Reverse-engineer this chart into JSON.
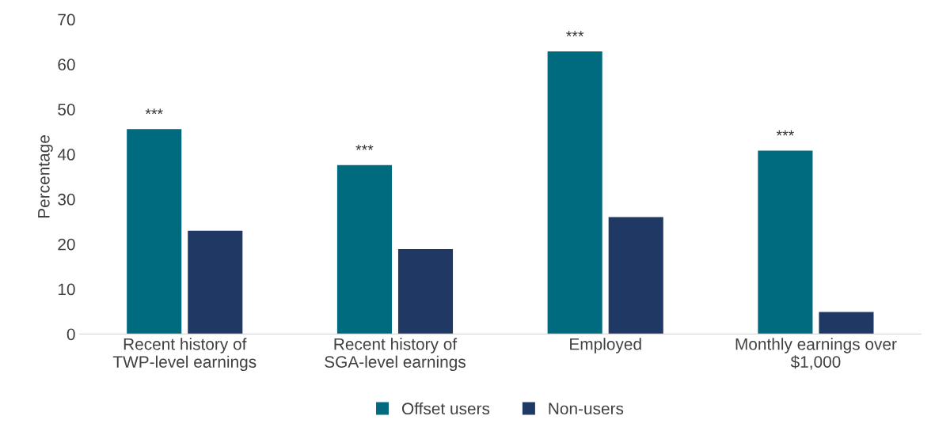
{
  "chart_data": {
    "type": "bar",
    "ylabel": "Percentage",
    "categories": [
      "Recent history of\nTWP-level earnings",
      "Recent history of\nSGA-level earnings",
      "Employed",
      "Monthly earnings over\n$1,000"
    ],
    "series": [
      {
        "name": "Offset users",
        "color": "#006a7f",
        "values": [
          45.6,
          37.6,
          62.9,
          40.8
        ]
      },
      {
        "name": "Non-users",
        "color": "#203864",
        "values": [
          23.0,
          18.9,
          26.0,
          4.9
        ]
      }
    ],
    "ylim": [
      0,
      70
    ],
    "yticks": [
      0,
      10,
      20,
      30,
      40,
      50,
      60,
      70
    ],
    "legend": "bottom",
    "annotations": [
      {
        "text": "***",
        "x": "Recent history of\nTWP-level earnings",
        "y": 45.6
      },
      {
        "text": "***",
        "x": "Recent history of\nSGA-level earnings",
        "y": 37.6
      },
      {
        "text": "***",
        "x": "Employed",
        "y": 62.9
      },
      {
        "text": "***",
        "x": "Monthly earnings over\n$1,000",
        "y": 40.8
      }
    ]
  }
}
